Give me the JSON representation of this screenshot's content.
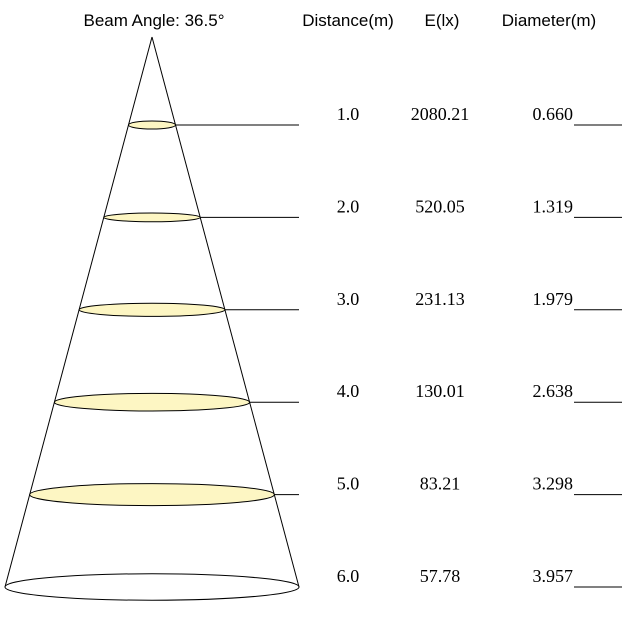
{
  "chart_data": {
    "type": "table",
    "title": "Beam Angle: 36.5°",
    "columns": [
      "Distance(m)",
      "E(lx)",
      "Diameter(m)"
    ],
    "rows": [
      {
        "distance": "1.0",
        "illuminance": "2080.21",
        "diameter": "0.660"
      },
      {
        "distance": "2.0",
        "illuminance": "520.05",
        "diameter": "1.319"
      },
      {
        "distance": "3.0",
        "illuminance": "231.13",
        "diameter": "1.979"
      },
      {
        "distance": "4.0",
        "illuminance": "130.01",
        "diameter": "2.638"
      },
      {
        "distance": "5.0",
        "illuminance": "83.21",
        "diameter": "3.298"
      },
      {
        "distance": "6.0",
        "illuminance": "57.78",
        "diameter": "3.957"
      }
    ],
    "colors": {
      "beam_fill": "#fdf6c3",
      "outline": "#000000",
      "base_fill": "#ffffff"
    }
  }
}
